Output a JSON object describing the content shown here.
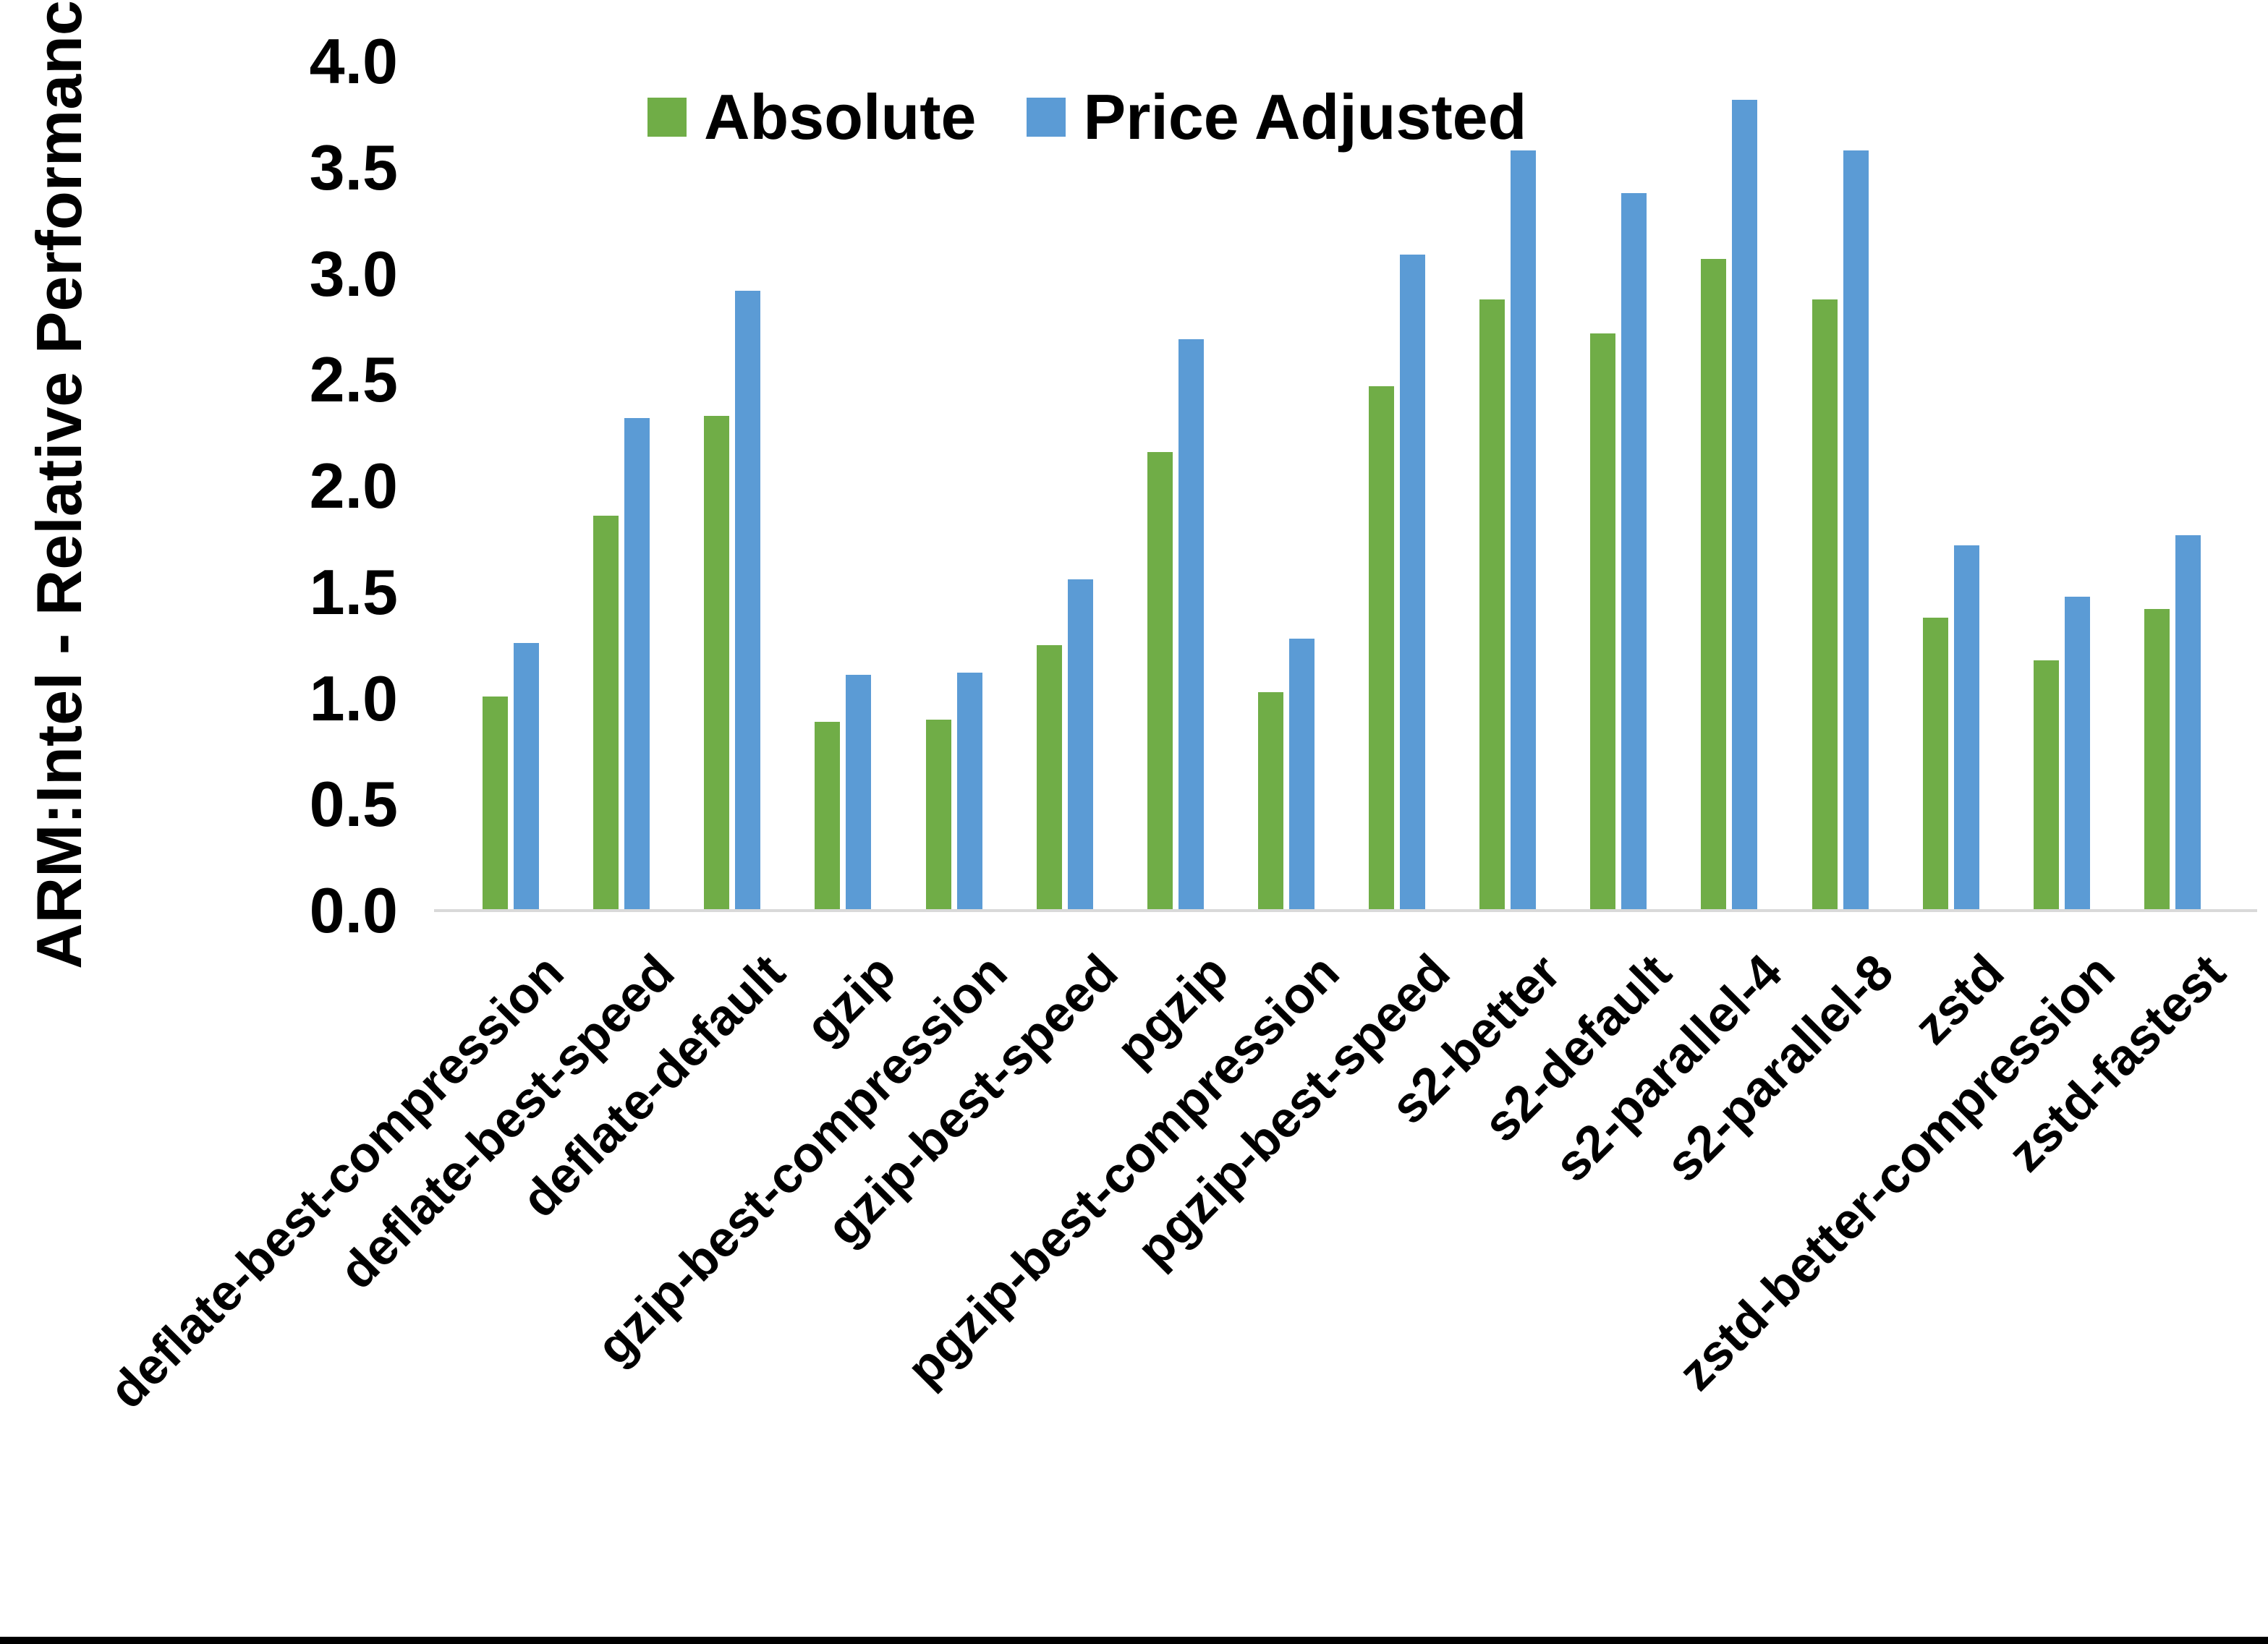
{
  "page": {
    "background": "#ffffff",
    "bottom_bar_color": "#000000"
  },
  "chart_data": {
    "type": "bar",
    "title": "",
    "xlabel": "",
    "ylabel": "ARM:Intel - Relative Performance",
    "ylim": [
      0.0,
      4.0
    ],
    "ytick_step": 0.5,
    "yticks": [
      "4.0",
      "3.5",
      "3.0",
      "2.5",
      "2.0",
      "1.5",
      "1.0",
      "0.5",
      "0.0"
    ],
    "grid": false,
    "legend_position": "top-center-inside",
    "axis_line_color": "#D9D9D9",
    "text_color": "#000000",
    "categories": [
      "deflate-best-compression",
      "deflate-best-speed",
      "deflate-default",
      "gzip",
      "gzip-best-compression",
      "gzip-best-speed",
      "pgzip",
      "pgzip-best-compression",
      "pgzip-best-speed",
      "s2-better",
      "s2-default",
      "s2-parallel-4",
      "s2-parallel-8",
      "zstd",
      "zstd-better-compression",
      "zstd-fastest"
    ],
    "series": [
      {
        "name": "Absolute",
        "color": "#70AD47",
        "values": [
          1.01,
          1.86,
          2.33,
          0.89,
          0.9,
          1.25,
          2.16,
          1.03,
          2.47,
          2.88,
          2.72,
          3.07,
          2.88,
          1.38,
          1.18,
          1.42
        ]
      },
      {
        "name": "Price Adjusted",
        "color": "#5B9BD5",
        "values": [
          1.26,
          2.32,
          2.92,
          1.11,
          1.12,
          1.56,
          2.69,
          1.28,
          3.09,
          3.58,
          3.38,
          3.82,
          3.58,
          1.72,
          1.48,
          1.77
        ]
      }
    ]
  }
}
